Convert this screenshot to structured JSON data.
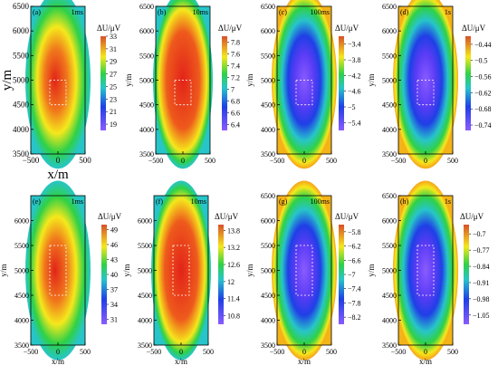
{
  "colors": {
    "map_low": "#8a5cff",
    "map_mid_low": "#1f3fe6",
    "map_mid": "#27c5c9",
    "map_mid_high": "#2fd146",
    "map_high_mid": "#f5e81c",
    "map_high": "#e2231a",
    "inset_bar_lo": "#8a5cff",
    "inset_bar_hi": "#d7502a",
    "overlay_box": "#ffffff"
  },
  "chart_data": [
    {
      "type": "heatmap",
      "panel": "(a)",
      "time": "1ms",
      "xlabel": "x/m",
      "ylabel": "y/m",
      "x_ticks": [
        "−500",
        "0",
        "500"
      ],
      "y_ticks": [
        "6500",
        "6000",
        "5500",
        "5000",
        "4500",
        "4000",
        "3500"
      ],
      "xlim": [
        -500,
        500
      ],
      "ylim": [
        3500,
        6500
      ],
      "colorbar_label": "ΔU/μV",
      "colorbar_ticks": [
        "33",
        "31",
        "29",
        "27",
        "25",
        "23",
        "21",
        "19"
      ],
      "colorbar_range": [
        18,
        33
      ],
      "pattern": "center-max",
      "inner_box": {
        "x": [
          -150,
          150
        ],
        "y": [
          4500,
          5000
        ]
      }
    },
    {
      "type": "heatmap",
      "panel": "(b)",
      "time": "10ms",
      "xlabel": "",
      "ylabel": "y/m",
      "x_ticks": [
        "−500",
        "0",
        "500"
      ],
      "y_ticks": [
        "6500",
        "6000",
        "5500",
        "5000",
        "4500",
        "4000",
        "3500"
      ],
      "xlim": [
        -500,
        500
      ],
      "ylim": [
        3500,
        6500
      ],
      "colorbar_label": "ΔU/μV",
      "colorbar_ticks": [
        "7.8",
        "7.6",
        "7.4",
        "7.2",
        "7",
        "6.8",
        "6.6",
        "6.4"
      ],
      "colorbar_range": [
        6.3,
        7.9
      ],
      "pattern": "elongated-max",
      "inner_box": {
        "x": [
          -150,
          150
        ],
        "y": [
          4500,
          5000
        ]
      }
    },
    {
      "type": "heatmap",
      "panel": "(c)",
      "time": "100ms",
      "xlabel": "",
      "ylabel": "y/m",
      "x_ticks": [
        "−500",
        "0",
        "500"
      ],
      "y_ticks": [
        "6500",
        "6000",
        "5500",
        "5000",
        "4500",
        "4000",
        "3500"
      ],
      "xlim": [
        -500,
        500
      ],
      "ylim": [
        3500,
        6500
      ],
      "colorbar_label": "ΔU/μV",
      "colorbar_ticks": [
        "−3.4",
        "−3.8",
        "−4.2",
        "−4.6",
        "−5",
        "−5.4"
      ],
      "colorbar_range": [
        -5.6,
        -3.2
      ],
      "pattern": "center-min",
      "inner_box": {
        "x": [
          -150,
          150
        ],
        "y": [
          4500,
          5000
        ]
      }
    },
    {
      "type": "heatmap",
      "panel": "(d)",
      "time": "1s",
      "xlabel": "",
      "ylabel": "y/m",
      "x_ticks": [
        "−500",
        "0",
        "500"
      ],
      "y_ticks": [
        "6500",
        "6000",
        "5500",
        "5000",
        "4500",
        "4000",
        "3500"
      ],
      "xlim": [
        -500,
        500
      ],
      "ylim": [
        3500,
        6500
      ],
      "colorbar_label": "ΔU/μV",
      "colorbar_ticks": [
        "−0.44",
        "−0.5",
        "−0.56",
        "−0.62",
        "−0.68",
        "−0.74"
      ],
      "colorbar_range": [
        -0.76,
        -0.41
      ],
      "pattern": "center-min",
      "inner_box": {
        "x": [
          -150,
          150
        ],
        "y": [
          4500,
          5000
        ]
      }
    },
    {
      "type": "heatmap",
      "panel": "(e)",
      "time": "1ms",
      "xlabel": "x/m",
      "ylabel": "y/m",
      "x_ticks": [
        "−500",
        "0",
        "500"
      ],
      "y_ticks": [
        "6000",
        "5500",
        "5000",
        "4500",
        "4000",
        "3500"
      ],
      "xlim": [
        -500,
        500
      ],
      "ylim": [
        3500,
        6500
      ],
      "colorbar_label": "ΔU/μV",
      "colorbar_ticks": [
        "49",
        "46",
        "43",
        "40",
        "37",
        "34",
        "31"
      ],
      "colorbar_range": [
        30,
        50
      ],
      "pattern": "center-max",
      "inner_box": {
        "x": [
          -150,
          150
        ],
        "y": [
          4500,
          5500
        ]
      }
    },
    {
      "type": "heatmap",
      "panel": "(f)",
      "time": "10ms",
      "xlabel": "x/m",
      "ylabel": "y/m",
      "x_ticks": [
        "−500",
        "0",
        "500"
      ],
      "y_ticks": [
        "6000",
        "5500",
        "5000",
        "4500",
        "4000",
        "3500"
      ],
      "xlim": [
        -500,
        500
      ],
      "ylim": [
        3500,
        6500
      ],
      "colorbar_label": "ΔU/μV",
      "colorbar_ticks": [
        "13.8",
        "13.2",
        "12.6",
        "12",
        "11.4",
        "10.8"
      ],
      "colorbar_range": [
        10.5,
        14
      ],
      "pattern": "elongated-max",
      "inner_box": {
        "x": [
          -150,
          150
        ],
        "y": [
          4500,
          5500
        ]
      }
    },
    {
      "type": "heatmap",
      "panel": "(g)",
      "time": "100ms",
      "xlabel": "x/m",
      "ylabel": "y/m",
      "x_ticks": [
        "−500",
        "0",
        "500"
      ],
      "y_ticks": [
        "6500",
        "6000",
        "5500",
        "5000",
        "4500",
        "4000",
        "3500"
      ],
      "xlim": [
        -500,
        500
      ],
      "ylim": [
        3500,
        6500
      ],
      "colorbar_label": "ΔU/μV",
      "colorbar_ticks": [
        "−5.8",
        "−6.2",
        "−6.6",
        "−7",
        "−7.4",
        "−7.8",
        "−8.2"
      ],
      "colorbar_range": [
        -8.4,
        -5.6
      ],
      "pattern": "center-min",
      "inner_box": {
        "x": [
          -150,
          150
        ],
        "y": [
          4500,
          5500
        ]
      }
    },
    {
      "type": "heatmap",
      "panel": "(h)",
      "time": "1s",
      "xlabel": "x/m",
      "ylabel": "y/m",
      "x_ticks": [
        "−500",
        "0",
        "500"
      ],
      "y_ticks": [
        "6500",
        "6000",
        "5500",
        "5000",
        "4500",
        "4000",
        "3500"
      ],
      "xlim": [
        -500,
        500
      ],
      "ylim": [
        3500,
        6500
      ],
      "colorbar_label": "ΔU/μV",
      "colorbar_ticks": [
        "−0.7",
        "−0.77",
        "−0.84",
        "−0.91",
        "−0.98",
        "−1.05"
      ],
      "colorbar_range": [
        -1.09,
        -0.66
      ],
      "pattern": "center-min",
      "inner_box": {
        "x": [
          -150,
          150
        ],
        "y": [
          4500,
          5500
        ]
      }
    }
  ]
}
